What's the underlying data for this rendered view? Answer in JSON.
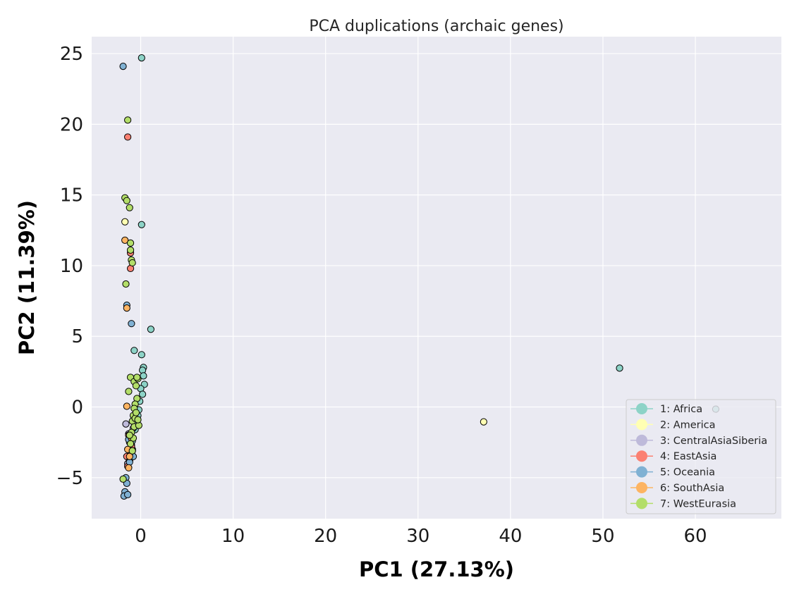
{
  "chart_data": {
    "type": "scatter",
    "title": "PCA duplications (archaic genes)",
    "xlabel": "PC1 (27.13%)",
    "ylabel": "PC2 (11.39%)",
    "xlim": [
      -5.3,
      69.3
    ],
    "ylim": [
      -7.9,
      26.2
    ],
    "xticks": [
      0,
      10,
      20,
      30,
      40,
      50,
      60
    ],
    "yticks": [
      -5,
      0,
      5,
      10,
      15,
      20,
      25
    ],
    "grid": true,
    "legend_position": "bottom-right",
    "colors": {
      "background": "#eaeaf2",
      "grid": "#ffffff",
      "marker_edge": "#000000"
    },
    "series": [
      {
        "name": "1: Africa",
        "color": "#8dd3c7",
        "points": [
          [
            0.1,
            24.7
          ],
          [
            0.1,
            12.9
          ],
          [
            1.1,
            5.5
          ],
          [
            -0.7,
            4.0
          ],
          [
            0.1,
            3.7
          ],
          [
            0.3,
            2.8
          ],
          [
            0.2,
            2.6
          ],
          [
            0.3,
            2.2
          ],
          [
            0.4,
            1.6
          ],
          [
            0.0,
            1.3
          ],
          [
            0.2,
            0.9
          ],
          [
            -0.1,
            0.4
          ],
          [
            -0.2,
            -0.2
          ],
          [
            -0.3,
            -0.6
          ],
          [
            -0.4,
            -1.2
          ],
          [
            51.8,
            2.75
          ],
          [
            62.2,
            -0.15
          ],
          [
            -0.6,
            -1.6
          ],
          [
            -0.9,
            -2.4
          ]
        ]
      },
      {
        "name": "2: America",
        "color": "#ffffb3",
        "points": [
          [
            -1.7,
            13.1
          ],
          [
            37.1,
            -1.05
          ],
          [
            -1.2,
            -2.5
          ],
          [
            -0.9,
            -3.0
          ]
        ]
      },
      {
        "name": "3: CentralAsiaSiberia",
        "color": "#bebada",
        "points": [
          [
            -1.6,
            -1.2
          ],
          [
            -1.3,
            -1.9
          ],
          [
            -1.0,
            -2.7
          ],
          [
            -0.8,
            -1.5
          ],
          [
            -1.1,
            -3.4
          ],
          [
            -1.4,
            -4.0
          ]
        ]
      },
      {
        "name": "4: EastAsia",
        "color": "#fb8072",
        "points": [
          [
            -1.4,
            19.1
          ],
          [
            -1.1,
            10.9
          ],
          [
            -1.1,
            9.8
          ],
          [
            -1.3,
            -2.0
          ],
          [
            -1.0,
            -2.8
          ],
          [
            -1.5,
            -3.5
          ],
          [
            -1.2,
            -3.8
          ],
          [
            -0.9,
            -3.1
          ],
          [
            -1.4,
            -4.2
          ]
        ]
      },
      {
        "name": "5: Oceania",
        "color": "#80b1d3",
        "points": [
          [
            -1.9,
            24.1
          ],
          [
            -1.5,
            7.2
          ],
          [
            -1.0,
            5.9
          ],
          [
            -1.6,
            -5.0
          ],
          [
            -1.5,
            -5.4
          ],
          [
            -1.7,
            -6.0
          ],
          [
            -1.8,
            -6.3
          ],
          [
            -1.4,
            -6.2
          ],
          [
            -1.2,
            -3.9
          ],
          [
            -0.8,
            -3.5
          ],
          [
            -1.3,
            -2.3
          ]
        ]
      },
      {
        "name": "6: SouthAsia",
        "color": "#fdb462",
        "points": [
          [
            -1.7,
            11.8
          ],
          [
            -1.5,
            7.0
          ],
          [
            -1.5,
            0.05
          ],
          [
            -1.2,
            -3.5
          ],
          [
            -1.3,
            -4.3
          ],
          [
            -1.0,
            -2.2
          ],
          [
            -1.4,
            -3.0
          ]
        ]
      },
      {
        "name": "7: WestEurasia",
        "color": "#b3de69",
        "points": [
          [
            -1.4,
            20.3
          ],
          [
            -1.7,
            14.8
          ],
          [
            -1.5,
            14.6
          ],
          [
            -1.2,
            14.1
          ],
          [
            -1.1,
            11.6
          ],
          [
            -1.1,
            11.1
          ],
          [
            -1.0,
            10.4
          ],
          [
            -0.9,
            10.2
          ],
          [
            -1.6,
            8.7
          ],
          [
            -1.1,
            2.1
          ],
          [
            -0.7,
            1.8
          ],
          [
            -1.3,
            1.1
          ],
          [
            -0.5,
            1.5
          ],
          [
            -0.3,
            2.0
          ],
          [
            -0.4,
            0.6
          ],
          [
            -0.6,
            0.2
          ],
          [
            -0.7,
            -0.1
          ],
          [
            -0.8,
            -0.6
          ],
          [
            -0.9,
            -1.0
          ],
          [
            -0.7,
            -1.4
          ],
          [
            -1.0,
            -1.8
          ],
          [
            -0.8,
            -2.2
          ],
          [
            -1.1,
            -2.6
          ],
          [
            -0.9,
            -3.1
          ],
          [
            -1.2,
            -2.0
          ],
          [
            -0.6,
            -0.8
          ],
          [
            -0.2,
            -1.3
          ],
          [
            -0.4,
            2.1
          ],
          [
            -1.9,
            -5.1
          ],
          [
            -0.3,
            -0.9
          ],
          [
            -0.5,
            -0.4
          ]
        ]
      }
    ]
  }
}
